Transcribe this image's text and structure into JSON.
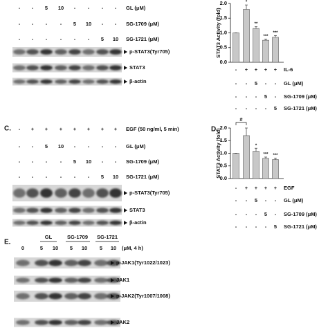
{
  "blot_panels": [
    {
      "rows": [
        {
          "cells": [
            "-",
            "-",
            "5",
            "10",
            "-",
            "-",
            "-",
            "-"
          ],
          "label": "GL (μM)"
        },
        {
          "cells": [
            "-",
            "-",
            "-",
            "-",
            "5",
            "10",
            "-",
            "-"
          ],
          "label": "SG-1709 (μM)"
        },
        {
          "cells": [
            "-",
            "-",
            "-",
            "-",
            "-",
            "-",
            "5",
            "10"
          ],
          "label": "SG-1721 (μM)"
        }
      ],
      "blots": [
        "p-STAT3(Tyr705)",
        "STAT3",
        "β-actin"
      ]
    },
    {
      "panel_label": "C.",
      "rows": [
        {
          "cells": [
            "-",
            "+",
            "+",
            "+",
            "+",
            "+",
            "+",
            "+"
          ],
          "label": "EGF (50 ng/ml, 5 min)"
        },
        {
          "cells": [
            "-",
            "-",
            "5",
            "10",
            "-",
            "-",
            "-",
            "-"
          ],
          "label": "GL (μM)"
        },
        {
          "cells": [
            "-",
            "-",
            "-",
            "-",
            "5",
            "10",
            "-",
            "-"
          ],
          "label": "SG-1709 (μM)"
        },
        {
          "cells": [
            "-",
            "-",
            "-",
            "-",
            "-",
            "-",
            "5",
            "10"
          ],
          "label": "SG-1721 (μM)"
        }
      ],
      "blots": [
        "p-STAT3(Tyr705)",
        "STAT3",
        "β-actin"
      ]
    },
    {
      "panel_label": "E.",
      "groups": [
        "GL",
        "SG-1709",
        "SG-1721"
      ],
      "lanes": [
        "0",
        "5",
        "10",
        "5",
        "10",
        "5",
        "10"
      ],
      "lanes_note": "(μM, 4 h)",
      "blots": [
        "p-JAK1(Tyr1022/1023)",
        "JAK1",
        "p-JAK2(Tyr1007/1008)",
        "JAK2"
      ]
    }
  ],
  "chart_data": [
    {
      "type": "bar",
      "y_label": "STAT3 Activity (fold)",
      "color": "#c8c8c8",
      "values": [
        1.0,
        1.8,
        1.15,
        0.75,
        0.85
      ],
      "errors": [
        0,
        0.15,
        0.06,
        0.04,
        0.06
      ],
      "annotations": [
        null,
        "*",
        "**",
        "***",
        "***"
      ],
      "ylim": [
        0,
        2.0
      ],
      "yticks": [
        {
          "value": 0,
          "label": "0.0"
        },
        0.5,
        {
          "value": 1,
          "label": "1.0"
        },
        1.5,
        {
          "value": 2,
          "label": "2.0"
        }
      ],
      "conditions": [
        {
          "cells": [
            "-",
            "+",
            "+",
            "+",
            "+"
          ],
          "label": "IL-6"
        },
        {
          "cells": [
            "-",
            "-",
            "5",
            "-",
            "-"
          ],
          "label": "GL (μM)"
        },
        {
          "cells": [
            "-",
            "-",
            "-",
            "5",
            "-"
          ],
          "label": "SG-1709 (μM)"
        },
        {
          "cells": [
            "-",
            "-",
            "-",
            "-",
            "5"
          ],
          "label": "SG-1721 (μM)"
        }
      ]
    },
    {
      "type": "bar",
      "panel_label": "D.",
      "y_label": "STAT3 Activity (fold)",
      "color": "#c8c8c8",
      "values": [
        1.0,
        1.7,
        1.08,
        0.8,
        0.75
      ],
      "errors": [
        0,
        0.3,
        0.12,
        0.05,
        0.06
      ],
      "annotations": [
        null,
        null,
        "*",
        "***",
        "***"
      ],
      "bracket_label": "#",
      "ylim": [
        0,
        2.0
      ],
      "yticks": [
        {
          "value": 0,
          "label": "0.0"
        },
        0.5,
        {
          "value": 1,
          "label": "1.0"
        },
        1.5,
        {
          "value": 2,
          "label": "2.0"
        }
      ],
      "conditions": [
        {
          "cells": [
            "-",
            "+",
            "+",
            "+",
            "+"
          ],
          "label": "EGF"
        },
        {
          "cells": [
            "-",
            "-",
            "5",
            "-",
            "-"
          ],
          "label": "GL (μM)"
        },
        {
          "cells": [
            "-",
            "-",
            "-",
            "5",
            "-"
          ],
          "label": "SG-1709 (μM)"
        },
        {
          "cells": [
            "-",
            "-",
            "-",
            "-",
            "5"
          ],
          "label": "SG-1721 (μM)"
        }
      ]
    }
  ]
}
